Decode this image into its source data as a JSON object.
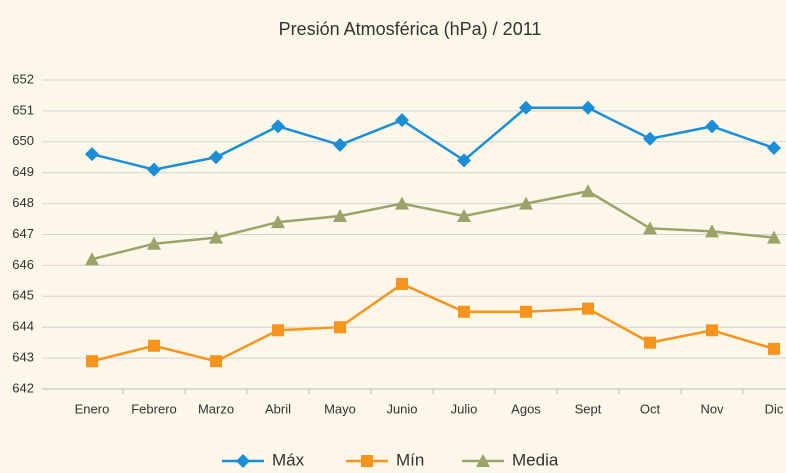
{
  "chart_data": {
    "type": "line",
    "title": "Presión Atmosférica (hPa) / 2011",
    "categories": [
      "Enero",
      "Febrero",
      "Marzo",
      "Abril",
      "Mayo",
      "Junio",
      "Julio",
      "Agos",
      "Sept",
      "Oct",
      "Nov",
      "Dic"
    ],
    "series": [
      {
        "name": "Máx",
        "color": "#1a8fd8",
        "marker": "diamond",
        "values": [
          649.6,
          649.1,
          649.5,
          650.5,
          649.9,
          650.7,
          649.4,
          651.1,
          651.1,
          650.1,
          650.5,
          649.8
        ]
      },
      {
        "name": "Mín",
        "color": "#f7941d",
        "marker": "square",
        "values": [
          642.9,
          643.4,
          642.9,
          643.9,
          644.0,
          645.4,
          644.5,
          644.5,
          644.6,
          643.5,
          643.9,
          643.3
        ]
      },
      {
        "name": "Media",
        "color": "#9ba36a",
        "marker": "triangle",
        "values": [
          646.2,
          646.7,
          646.9,
          647.4,
          647.6,
          648.0,
          647.6,
          648.0,
          648.4,
          647.2,
          647.1,
          646.9
        ]
      }
    ],
    "ylim": [
      642,
      652
    ],
    "yticks": [
      642,
      643,
      644,
      645,
      646,
      647,
      648,
      649,
      650,
      651,
      652
    ],
    "grid": true,
    "legend": "bottom"
  }
}
